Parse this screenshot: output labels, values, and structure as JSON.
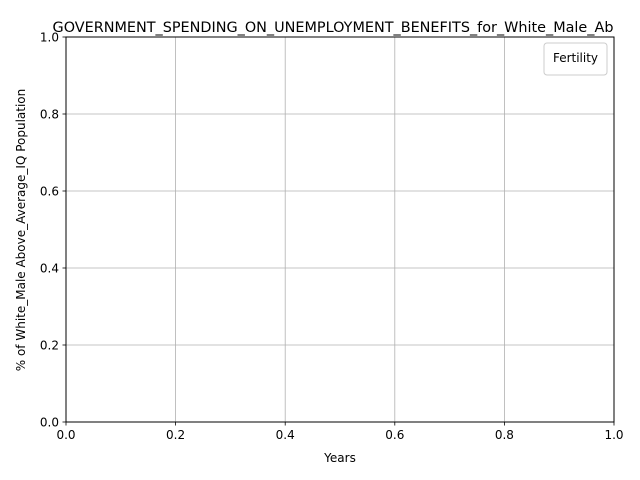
{
  "chart_data": {
    "type": "line",
    "title": "GOVERNMENT_SPENDING_ON_UNEMPLOYMENT_BENEFITS_for_White_Male_Ab",
    "xlabel": "Years",
    "ylabel": "% of White_Male Above_Average_IQ Population",
    "xlim": [
      0.0,
      1.0
    ],
    "ylim": [
      0.0,
      1.0
    ],
    "x_ticks": [
      0.0,
      0.2,
      0.4,
      0.6,
      0.8,
      1.0
    ],
    "y_ticks": [
      0.0,
      0.2,
      0.4,
      0.6,
      0.8,
      1.0
    ],
    "x_tick_labels": [
      "0.0",
      "0.2",
      "0.4",
      "0.6",
      "0.8",
      "1.0"
    ],
    "y_tick_labels": [
      "0.0",
      "0.2",
      "0.4",
      "0.6",
      "0.8",
      "1.0"
    ],
    "grid": true,
    "legend": {
      "title": "Fertility",
      "placement": "top-right",
      "entries": []
    },
    "series": []
  },
  "colors": {
    "grid": "#b0b0b0",
    "axis": "#000000",
    "legend_border": "#cccccc"
  }
}
